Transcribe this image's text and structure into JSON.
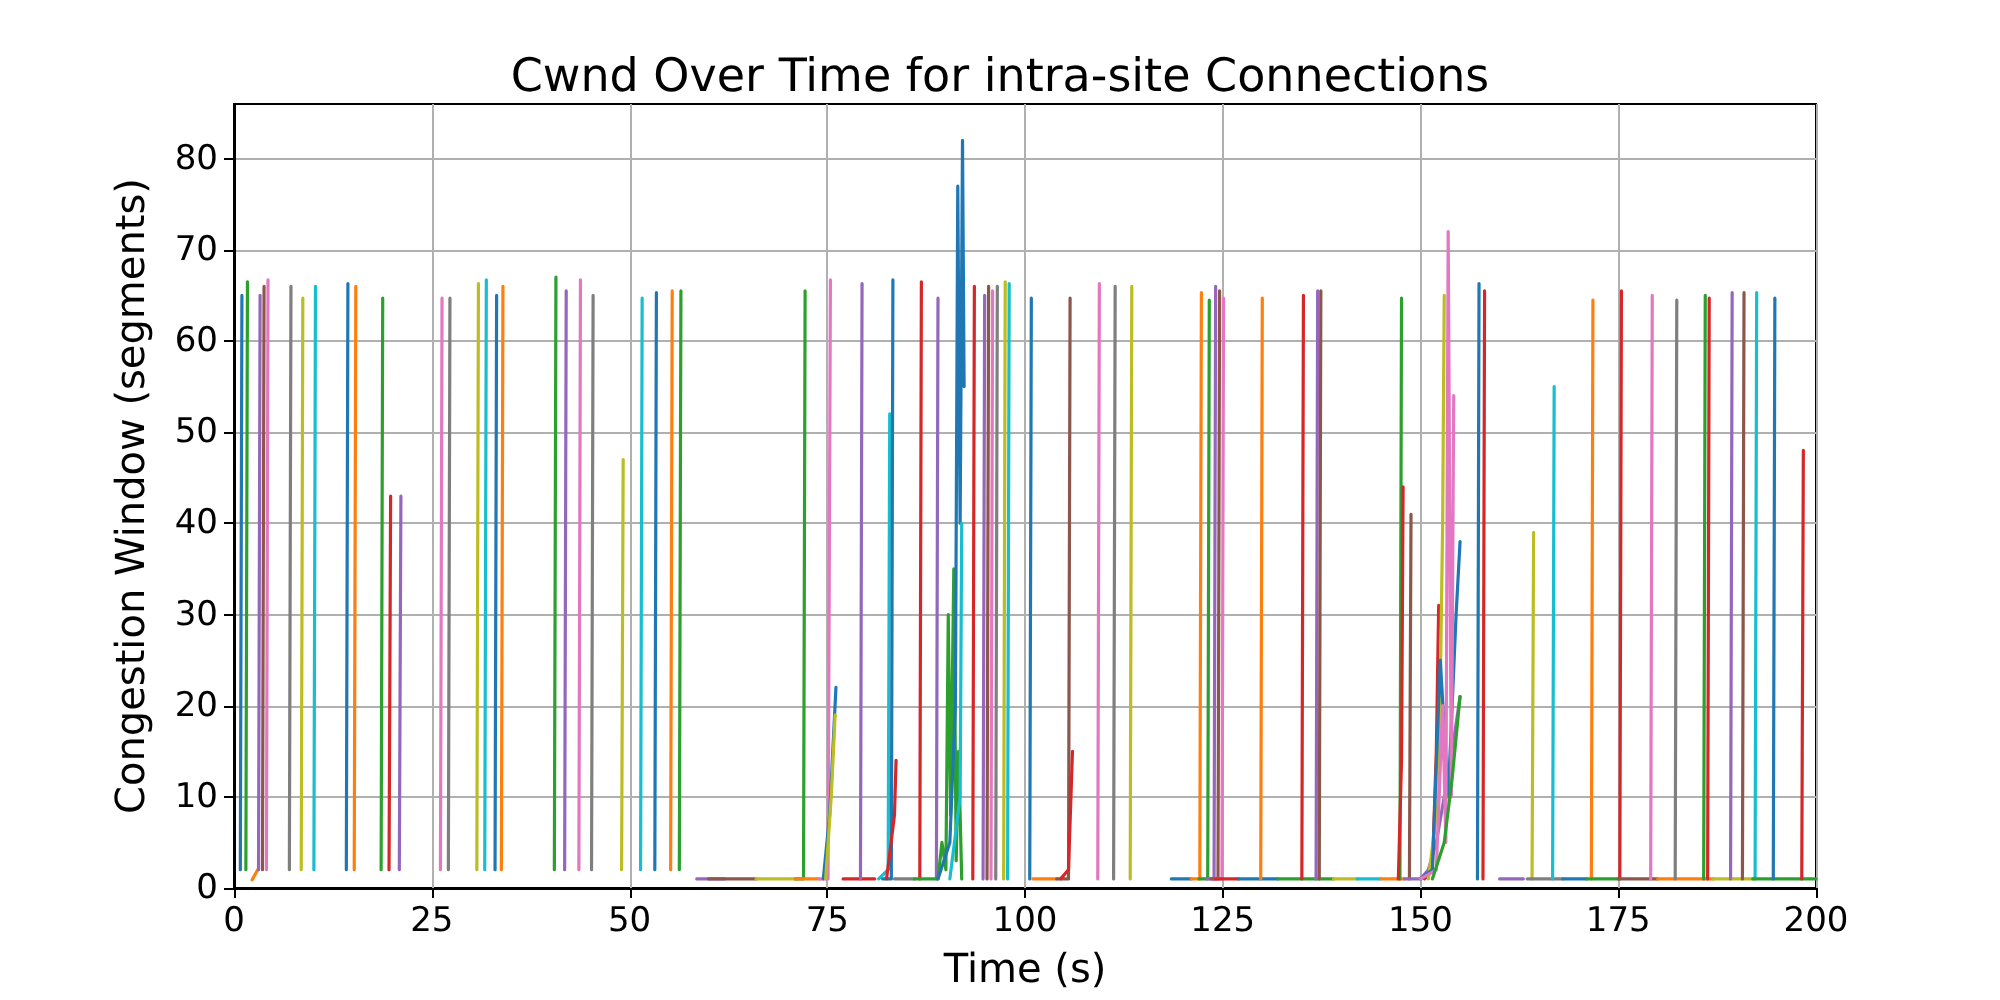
{
  "chart_data": {
    "type": "line",
    "title": "Cwnd Over Time for intra-site Connections",
    "xlabel": "Time (s)",
    "ylabel": "Congestion Window (segments)",
    "xlim": [
      0,
      200
    ],
    "ylim": [
      0,
      86
    ],
    "xticks": [
      0,
      25,
      50,
      75,
      100,
      125,
      150,
      175,
      200
    ],
    "yticks": [
      0,
      10,
      20,
      30,
      40,
      50,
      60,
      70,
      80
    ],
    "grid": true,
    "line_style": "solid",
    "series": [
      {
        "color": "#1f77b4",
        "x": [
          0.8,
          1.0
        ],
        "values": [
          2,
          65
        ]
      },
      {
        "color": "#2ca02c",
        "x": [
          1.5,
          1.7
        ],
        "values": [
          2,
          66.5
        ]
      },
      {
        "color": "#ff7f0e",
        "x": [
          2.3,
          3.0
        ],
        "values": [
          0.9,
          2
        ]
      },
      {
        "color": "#9467bd",
        "x": [
          3.1,
          3.3
        ],
        "values": [
          2,
          65
        ]
      },
      {
        "color": "#8c564b",
        "x": [
          3.6,
          3.8
        ],
        "values": [
          2,
          66
        ]
      },
      {
        "color": "#e377c2",
        "x": [
          4.1,
          4.3
        ],
        "values": [
          2,
          66.7
        ]
      },
      {
        "color": "#7f7f7f",
        "x": [
          7.0,
          7.2
        ],
        "values": [
          2,
          66
        ]
      },
      {
        "color": "#bcbd22",
        "x": [
          8.5,
          8.7
        ],
        "values": [
          2,
          64.7
        ]
      },
      {
        "color": "#17becf",
        "x": [
          10.1,
          10.3
        ],
        "values": [
          2,
          66
        ]
      },
      {
        "color": "#1f77b4",
        "x": [
          14.2,
          14.4
        ],
        "values": [
          2,
          66.3
        ]
      },
      {
        "color": "#ff7f0e",
        "x": [
          15.2,
          15.4
        ],
        "values": [
          2,
          66
        ]
      },
      {
        "color": "#2ca02c",
        "x": [
          18.6,
          18.8
        ],
        "values": [
          2,
          64.7
        ]
      },
      {
        "color": "#d62728",
        "x": [
          19.6,
          19.8
        ],
        "values": [
          2,
          43
        ]
      },
      {
        "color": "#9467bd",
        "x": [
          20.9,
          21.1
        ],
        "values": [
          2,
          43
        ]
      },
      {
        "color": "#e377c2",
        "x": [
          26.1,
          26.3
        ],
        "values": [
          2,
          64.7
        ]
      },
      {
        "color": "#7f7f7f",
        "x": [
          27.1,
          27.3
        ],
        "values": [
          2,
          64.7
        ]
      },
      {
        "color": "#bcbd22",
        "x": [
          30.7,
          30.9
        ],
        "values": [
          2,
          66.3
        ]
      },
      {
        "color": "#17becf",
        "x": [
          31.7,
          31.9
        ],
        "values": [
          2,
          66.7
        ]
      },
      {
        "color": "#1f77b4",
        "x": [
          33.0,
          33.2
        ],
        "values": [
          2,
          65
        ]
      },
      {
        "color": "#ff7f0e",
        "x": [
          33.8,
          34.0
        ],
        "values": [
          2,
          66
        ]
      },
      {
        "color": "#2ca02c",
        "x": [
          40.5,
          40.7
        ],
        "values": [
          2,
          67
        ]
      },
      {
        "color": "#9467bd",
        "x": [
          41.8,
          42.0
        ],
        "values": [
          2,
          65.5
        ]
      },
      {
        "color": "#e377c2",
        "x": [
          43.6,
          43.8
        ],
        "values": [
          2,
          66.7
        ]
      },
      {
        "color": "#7f7f7f",
        "x": [
          45.2,
          45.4
        ],
        "values": [
          2,
          65
        ]
      },
      {
        "color": "#bcbd22",
        "x": [
          49.0,
          49.2
        ],
        "values": [
          2,
          47
        ]
      },
      {
        "color": "#17becf",
        "x": [
          51.4,
          51.6
        ],
        "values": [
          2,
          64.7
        ]
      },
      {
        "color": "#1f77b4",
        "x": [
          53.2,
          53.4
        ],
        "values": [
          2,
          65.3
        ]
      },
      {
        "color": "#ff7f0e",
        "x": [
          55.2,
          55.4
        ],
        "values": [
          2,
          65.5
        ]
      },
      {
        "color": "#2ca02c",
        "x": [
          56.3,
          56.5
        ],
        "values": [
          2,
          65.5
        ]
      },
      {
        "color": "#9467bd",
        "x": [
          58.5,
          62
        ],
        "values": [
          1,
          1
        ]
      },
      {
        "color": "#8c564b",
        "x": [
          60,
          66
        ],
        "values": [
          1,
          1
        ]
      },
      {
        "color": "#bcbd22",
        "x": [
          66,
          71
        ],
        "values": [
          1,
          1
        ]
      },
      {
        "color": "#2ca02c",
        "x": [
          71,
          72.0,
          72.2
        ],
        "values": [
          1,
          1,
          65.5
        ]
      },
      {
        "color": "#ff7f0e",
        "x": [
          71,
          74
        ],
        "values": [
          1,
          1
        ]
      },
      {
        "color": "#e377c2",
        "x": [
          74,
          75.1,
          75.4
        ],
        "values": [
          1,
          1,
          66.7
        ]
      },
      {
        "color": "#1f77b4",
        "x": [
          74.5,
          75.3,
          76.1
        ],
        "values": [
          1,
          8,
          22
        ]
      },
      {
        "color": "#bcbd22",
        "x": [
          74.8,
          75.5,
          76.0
        ],
        "values": [
          1,
          10,
          19
        ]
      },
      {
        "color": "#d62728",
        "x": [
          77,
          81
        ],
        "values": [
          1,
          1
        ]
      },
      {
        "color": "#9467bd",
        "x": [
          79.2,
          79.4
        ],
        "values": [
          1,
          66.3
        ]
      },
      {
        "color": "#17becf",
        "x": [
          81.5,
          82.7,
          82.9
        ],
        "values": [
          1,
          2,
          52
        ]
      },
      {
        "color": "#1f77b4",
        "x": [
          82,
          83.1,
          83.3
        ],
        "values": [
          1,
          1,
          66.7
        ]
      },
      {
        "color": "#d62728",
        "x": [
          82.5,
          83.5,
          83.7
        ],
        "values": [
          1,
          8,
          14
        ]
      },
      {
        "color": "#7f7f7f",
        "x": [
          83.5,
          86
        ],
        "values": [
          1,
          1
        ]
      },
      {
        "color": "#d62728",
        "x": [
          86.7,
          86.9
        ],
        "values": [
          1,
          66.5
        ]
      },
      {
        "color": "#9467bd",
        "x": [
          88.8,
          89.0
        ],
        "values": [
          1,
          64.7
        ]
      },
      {
        "color": "#2ca02c",
        "x": [
          86,
          89,
          89.5,
          90,
          90.3,
          90.6,
          91,
          91.3,
          91.6,
          92
        ],
        "values": [
          1,
          1,
          5,
          2,
          30,
          8,
          35,
          3,
          15,
          1
        ]
      },
      {
        "color": "#1f77b4",
        "x": [
          89,
          90.5,
          91.2,
          91.5,
          91.8,
          92.1,
          92.3
        ],
        "values": [
          1,
          5,
          20,
          77,
          40,
          82,
          55
        ]
      },
      {
        "color": "#17becf",
        "x": [
          90.5,
          91.8,
          92.0
        ],
        "values": [
          1,
          10,
          40
        ]
      },
      {
        "color": "#d62728",
        "x": [
          93.4,
          93.6
        ],
        "values": [
          1,
          66
        ]
      },
      {
        "color": "#9467bd",
        "x": [
          94.7,
          94.9
        ],
        "values": [
          1,
          65
        ]
      },
      {
        "color": "#8c564b",
        "x": [
          95.2,
          95.4
        ],
        "values": [
          1,
          66
        ]
      },
      {
        "color": "#e377c2",
        "x": [
          95.7,
          95.9
        ],
        "values": [
          1,
          65.5
        ]
      },
      {
        "color": "#7f7f7f",
        "x": [
          96.3,
          96.5
        ],
        "values": [
          1,
          66
        ]
      },
      {
        "color": "#bcbd22",
        "x": [
          97.3,
          97.5
        ],
        "values": [
          1,
          66.5
        ]
      },
      {
        "color": "#17becf",
        "x": [
          97.8,
          98.0
        ],
        "values": [
          1,
          66.3
        ]
      },
      {
        "color": "#1f77b4",
        "x": [
          100.6,
          100.8
        ],
        "values": [
          1,
          64.7
        ]
      },
      {
        "color": "#ff7f0e",
        "x": [
          101,
          104
        ],
        "values": [
          1,
          1
        ]
      },
      {
        "color": "#8c564b",
        "x": [
          104,
          105.5,
          105.7
        ],
        "values": [
          1,
          1,
          64.7
        ]
      },
      {
        "color": "#d62728",
        "x": [
          104.5,
          105.5,
          106.0
        ],
        "values": [
          1,
          2,
          15
        ]
      },
      {
        "color": "#e377c2",
        "x": [
          109.2,
          109.4
        ],
        "values": [
          1,
          66.3
        ]
      },
      {
        "color": "#7f7f7f",
        "x": [
          111.2,
          111.4
        ],
        "values": [
          1,
          66
        ]
      },
      {
        "color": "#bcbd22",
        "x": [
          113.3,
          113.5
        ],
        "values": [
          1,
          66
        ]
      },
      {
        "color": "#1f77b4",
        "x": [
          118.5,
          121
        ],
        "values": [
          1,
          1
        ]
      },
      {
        "color": "#ff7f0e",
        "x": [
          121,
          122.1,
          122.3
        ],
        "values": [
          1,
          1,
          65.3
        ]
      },
      {
        "color": "#2ca02c",
        "x": [
          122,
          123.1,
          123.3
        ],
        "values": [
          1,
          1,
          64.5
        ]
      },
      {
        "color": "#9467bd",
        "x": [
          123,
          123.9,
          124.1
        ],
        "values": [
          1,
          1,
          66
        ]
      },
      {
        "color": "#8c564b",
        "x": [
          123.5,
          124.4,
          124.6
        ],
        "values": [
          1,
          1,
          65.5
        ]
      },
      {
        "color": "#e377c2",
        "x": [
          124,
          124.9,
          125.1
        ],
        "values": [
          1,
          1,
          64.7
        ]
      },
      {
        "color": "#d62728",
        "x": [
          124,
          127
        ],
        "values": [
          1,
          1
        ]
      },
      {
        "color": "#1f77b4",
        "x": [
          127,
          132
        ],
        "values": [
          1,
          1
        ]
      },
      {
        "color": "#ff7f0e",
        "x": [
          129.8,
          130.0
        ],
        "values": [
          1,
          64.7
        ]
      },
      {
        "color": "#2ca02c",
        "x": [
          132,
          139
        ],
        "values": [
          1,
          1
        ]
      },
      {
        "color": "#d62728",
        "x": [
          135.0,
          135.2
        ],
        "values": [
          1,
          65
        ]
      },
      {
        "color": "#9467bd",
        "x": [
          136.8,
          137.0
        ],
        "values": [
          1,
          65.5
        ]
      },
      {
        "color": "#8c564b",
        "x": [
          137.2,
          137.4
        ],
        "values": [
          1,
          65.5
        ]
      },
      {
        "color": "#bcbd22",
        "x": [
          139,
          142
        ],
        "values": [
          1,
          1
        ]
      },
      {
        "color": "#17becf",
        "x": [
          142,
          145
        ],
        "values": [
          1,
          1
        ]
      },
      {
        "color": "#ff7f0e",
        "x": [
          145,
          148
        ],
        "values": [
          1,
          1
        ]
      },
      {
        "color": "#2ca02c",
        "x": [
          147.4,
          147.6
        ],
        "values": [
          1,
          64.7
        ]
      },
      {
        "color": "#d62728",
        "x": [
          147.2,
          147.6,
          147.8
        ],
        "values": [
          1,
          14,
          44
        ]
      },
      {
        "color": "#8c564b",
        "x": [
          148.6,
          148.8
        ],
        "values": [
          1,
          41
        ]
      },
      {
        "color": "#9467bd",
        "x": [
          148,
          150,
          151,
          152,
          153,
          154,
          155
        ],
        "values": [
          1,
          1,
          2,
          5,
          10,
          15,
          21
        ]
      },
      {
        "color": "#d62728",
        "x": [
          150.5,
          151.5,
          152.0,
          152.3
        ],
        "values": [
          1,
          2,
          15,
          31
        ]
      },
      {
        "color": "#bcbd22",
        "x": [
          151,
          152.3,
          152.8,
          153.0
        ],
        "values": [
          1,
          10,
          40,
          65
        ]
      },
      {
        "color": "#1f77b4",
        "x": [
          150,
          151.5,
          152.5,
          153.5,
          154.5,
          155.0
        ],
        "values": [
          1,
          2,
          25,
          10,
          30,
          38
        ]
      },
      {
        "color": "#e377c2",
        "x": [
          150,
          152,
          152.8,
          153.2,
          153.5,
          153.9,
          154.2
        ],
        "values": [
          1,
          2,
          20,
          5,
          72,
          10,
          54
        ]
      },
      {
        "color": "#2ca02c",
        "x": [
          151.5,
          153,
          154,
          155
        ],
        "values": [
          1,
          5,
          12,
          21
        ]
      },
      {
        "color": "#1f77b4",
        "x": [
          157.2,
          157.4
        ],
        "values": [
          1,
          66.3
        ]
      },
      {
        "color": "#d62728",
        "x": [
          157.9,
          158.1
        ],
        "values": [
          1,
          65.5
        ]
      },
      {
        "color": "#9467bd",
        "x": [
          160,
          163
        ],
        "values": [
          1,
          1
        ]
      },
      {
        "color": "#bcbd22",
        "x": [
          164.1,
          164.3
        ],
        "values": [
          1,
          39
        ]
      },
      {
        "color": "#7f7f7f",
        "x": [
          163.5,
          168
        ],
        "values": [
          1,
          1
        ]
      },
      {
        "color": "#17becf",
        "x": [
          166.7,
          166.9
        ],
        "values": [
          1,
          55
        ]
      },
      {
        "color": "#1f77b4",
        "x": [
          168,
          171
        ],
        "values": [
          1,
          1
        ]
      },
      {
        "color": "#ff7f0e",
        "x": [
          171.6,
          171.8
        ],
        "values": [
          1,
          64.5
        ]
      },
      {
        "color": "#2ca02c",
        "x": [
          171,
          175
        ],
        "values": [
          1,
          1
        ]
      },
      {
        "color": "#d62728",
        "x": [
          175.2,
          175.4
        ],
        "values": [
          1,
          65.5
        ]
      },
      {
        "color": "#8c564b",
        "x": [
          175,
          180
        ],
        "values": [
          1,
          1
        ]
      },
      {
        "color": "#e377c2",
        "x": [
          179.1,
          179.3
        ],
        "values": [
          1,
          65
        ]
      },
      {
        "color": "#ff7f0e",
        "x": [
          180,
          187
        ],
        "values": [
          1,
          1
        ]
      },
      {
        "color": "#7f7f7f",
        "x": [
          182.2,
          182.4
        ],
        "values": [
          1,
          64.5
        ]
      },
      {
        "color": "#2ca02c",
        "x": [
          185.8,
          186.0
        ],
        "values": [
          1,
          65
        ]
      },
      {
        "color": "#d62728",
        "x": [
          186.3,
          186.5
        ],
        "values": [
          1,
          64.7
        ]
      },
      {
        "color": "#bcbd22",
        "x": [
          187,
          192
        ],
        "values": [
          1,
          1
        ]
      },
      {
        "color": "#9467bd",
        "x": [
          189.2,
          189.4
        ],
        "values": [
          1,
          65.3
        ]
      },
      {
        "color": "#8c564b",
        "x": [
          190.7,
          190.9
        ],
        "values": [
          1,
          65.3
        ]
      },
      {
        "color": "#17becf",
        "x": [
          192.3,
          192.5
        ],
        "values": [
          1,
          65.3
        ]
      },
      {
        "color": "#2ca02c",
        "x": [
          192,
          200
        ],
        "values": [
          1,
          1
        ]
      },
      {
        "color": "#1f77b4",
        "x": [
          194.6,
          194.8
        ],
        "values": [
          1,
          64.7
        ]
      },
      {
        "color": "#d62728",
        "x": [
          198.2,
          198.4
        ],
        "values": [
          1,
          48
        ]
      }
    ]
  }
}
